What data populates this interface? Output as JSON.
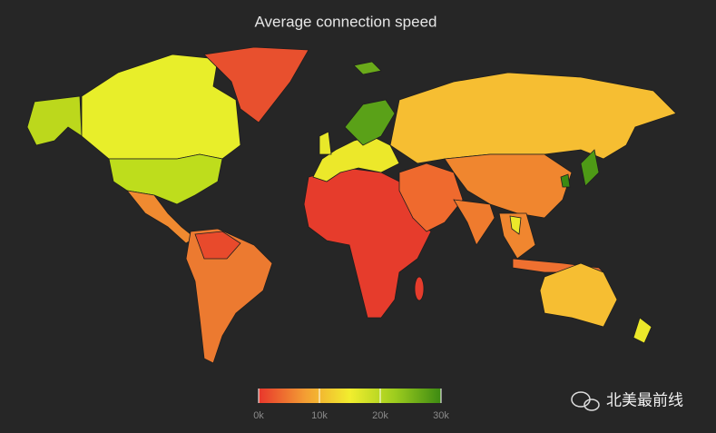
{
  "title": "Average connection speed",
  "legend": {
    "range": [
      0,
      30000
    ],
    "ticks": [
      {
        "value": 0,
        "label": "0k"
      },
      {
        "value": 10000,
        "label": "10k"
      },
      {
        "value": 20000,
        "label": "20k"
      },
      {
        "value": 30000,
        "label": "30k"
      }
    ],
    "colorscale": [
      "#e8362c",
      "#f39c33",
      "#f2ee2e",
      "#9ccc1e",
      "#3c8a12"
    ]
  },
  "watermark": "北美最前线"
}
